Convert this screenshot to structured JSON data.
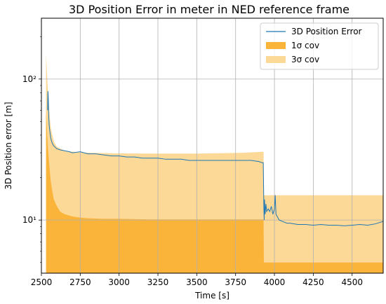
{
  "chart_data": {
    "type": "area",
    "title": "3D Position Error in meter in NED reference frame",
    "xlabel": "Time [s]",
    "ylabel": "3D Position error [m]",
    "xlim": [
      2500,
      4700
    ],
    "ylim": [
      4.2,
      270
    ],
    "yscale": "log",
    "grid": true,
    "legend_position": "top-right",
    "x_ticks": [
      2500,
      2750,
      3000,
      3250,
      3500,
      3750,
      4000,
      4250,
      4500
    ],
    "y_ticks": [
      {
        "value": 10,
        "label": "10¹"
      },
      {
        "value": 100,
        "label": "10²"
      }
    ],
    "colors": {
      "error_line": "#1f77b4",
      "cov_1sigma": "#fbb43a",
      "cov_3sigma": "#fdd998",
      "grid": "#b0b0b0"
    },
    "series": [
      {
        "name": "3D Position Error",
        "kind": "line",
        "x": [
          2540,
          2542,
          2544,
          2547,
          2550,
          2555,
          2560,
          2570,
          2580,
          2600,
          2620,
          2650,
          2680,
          2700,
          2750,
          2800,
          2850,
          2900,
          2950,
          3000,
          3050,
          3100,
          3150,
          3200,
          3250,
          3300,
          3350,
          3400,
          3450,
          3500,
          3550,
          3600,
          3650,
          3700,
          3750,
          3800,
          3850,
          3900,
          3920,
          3928,
          3932,
          3934,
          3936,
          3940,
          3945,
          3950,
          3960,
          3970,
          3980,
          3990,
          4000,
          4005,
          4010,
          4020,
          4030,
          4050,
          4080,
          4100,
          4150,
          4200,
          4250,
          4300,
          4350,
          4400,
          4450,
          4500,
          4550,
          4600,
          4650,
          4700
        ],
        "values": [
          60,
          82,
          75,
          55,
          47,
          42,
          38,
          35,
          33.5,
          32,
          31.5,
          31,
          30.5,
          30,
          30.5,
          29.5,
          29.5,
          29,
          28.5,
          28.5,
          28,
          28,
          27.5,
          27.5,
          27.5,
          27,
          27,
          27,
          26.5,
          26.5,
          26.5,
          26.5,
          26.5,
          26.5,
          26.5,
          26.5,
          26.5,
          26,
          25.5,
          25.5,
          12,
          10,
          14,
          11,
          13,
          11.5,
          12,
          11.5,
          12.5,
          11,
          12,
          15,
          11,
          10.5,
          10,
          9.8,
          9.5,
          9.5,
          9.3,
          9.3,
          9.2,
          9.3,
          9.2,
          9.2,
          9.1,
          9.2,
          9.3,
          9.2,
          9.4,
          9.8
        ]
      },
      {
        "name": "1σ cov",
        "kind": "area",
        "x": [
          2530,
          2540,
          2550,
          2560,
          2570,
          2580,
          2600,
          2620,
          2650,
          2700,
          2750,
          2800,
          2900,
          3000,
          3200,
          3500,
          3800,
          3930,
          3932,
          4700
        ],
        "values": [
          60,
          35,
          25,
          19,
          16,
          14,
          12.5,
          11.5,
          11,
          10.6,
          10.4,
          10.3,
          10.2,
          10.2,
          10.1,
          10.1,
          10.1,
          10.1,
          5,
          5
        ]
      },
      {
        "name": "3σ cov",
        "kind": "area",
        "x": [
          2530,
          2540,
          2550,
          2560,
          2580,
          2600,
          2650,
          2700,
          2800,
          3000,
          3200,
          3500,
          3800,
          3930,
          3932,
          4700
        ],
        "values": [
          150,
          90,
          60,
          45,
          36,
          33,
          31,
          30.5,
          30,
          29.7,
          29.6,
          29.6,
          30,
          30.5,
          15,
          15
        ]
      }
    ]
  }
}
